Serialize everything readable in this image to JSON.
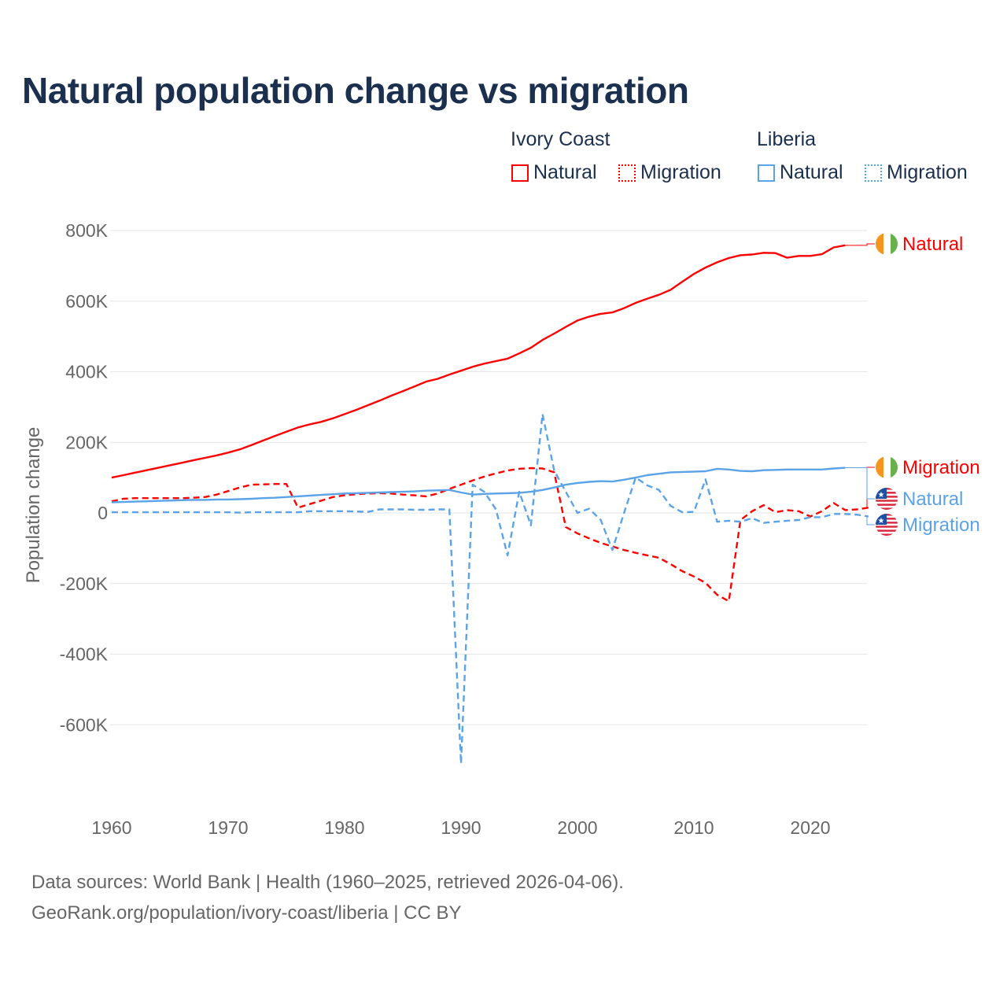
{
  "title": "Natural population change vs migration",
  "legend": {
    "groups": [
      {
        "name": "Ivory Coast",
        "color": "#ff0000",
        "items": [
          "Natural",
          "Migration"
        ]
      },
      {
        "name": "Liberia",
        "color": "#5ba3e8",
        "items": [
          "Natural",
          "Migration"
        ]
      }
    ]
  },
  "footer": {
    "line1": "Data sources: World Bank | Health (1960–2025, retrieved 2026-04-06).",
    "line2": "GeoRank.org/population/ivory-coast/liberia | CC BY"
  },
  "chart_data": {
    "type": "line",
    "title": "Natural population change vs migration",
    "xlabel": "",
    "ylabel": "Population change",
    "xlim": [
      1960,
      2025
    ],
    "ylim": [
      -800000,
      800000
    ],
    "x_ticks": [
      1960,
      1970,
      1980,
      1990,
      2000,
      2010,
      2020
    ],
    "x_tick_labels": [
      "1960",
      "1970",
      "1980",
      "1990",
      "2000",
      "2010",
      "2020"
    ],
    "y_ticks": [
      800000,
      600000,
      400000,
      200000,
      0,
      -200000,
      -400000,
      -600000
    ],
    "y_tick_labels": [
      "800K",
      "600K",
      "400K",
      "200K",
      "0",
      "-200K",
      "-400K",
      "-600K"
    ],
    "grid": true,
    "legend_position": "top-right",
    "series": [
      {
        "name": "Ivory Coast Natural",
        "end_label": "Natural",
        "country": "ivory-coast",
        "color": "#ff0000",
        "dash": false,
        "start_year": 1960,
        "values_k": [
          100,
          107,
          114,
          121,
          128,
          135,
          142,
          149,
          156,
          163,
          171,
          180,
          192,
          205,
          218,
          230,
          242,
          251,
          258,
          268,
          280,
          292,
          305,
          318,
          332,
          345,
          358,
          372,
          380,
          392,
          403,
          414,
          423,
          430,
          437,
          452,
          468,
          490,
          508,
          527,
          545,
          556,
          564,
          568,
          580,
          595,
          607,
          618,
          632,
          655,
          677,
          695,
          710,
          722,
          730,
          732,
          737,
          736,
          723,
          728,
          728,
          733,
          752,
          758
        ]
      },
      {
        "name": "Ivory Coast Migration",
        "end_label": "Migration",
        "country": "ivory-coast",
        "color": "#ff0000",
        "dash": true,
        "start_year": 1960,
        "values_k": [
          33,
          40,
          42,
          42,
          42,
          42,
          42,
          43,
          45,
          52,
          62,
          72,
          80,
          81,
          82,
          82,
          15,
          25,
          35,
          45,
          50,
          53,
          55,
          56,
          55,
          52,
          50,
          47,
          55,
          68,
          80,
          92,
          103,
          112,
          120,
          125,
          127,
          126,
          115,
          -40,
          -58,
          -72,
          -85,
          -95,
          -105,
          -113,
          -120,
          -127,
          -145,
          -165,
          -180,
          -198,
          -232,
          -250,
          -20,
          5,
          22,
          2,
          8,
          5,
          -10,
          5,
          28,
          8,
          10,
          15
        ]
      },
      {
        "name": "Liberia Natural",
        "end_label": "Natural",
        "country": "liberia",
        "color": "#5ba3e8",
        "dash": false,
        "start_year": 1960,
        "values_k": [
          30,
          31,
          32,
          33,
          34,
          35,
          36,
          37,
          37,
          38,
          38,
          39,
          40,
          42,
          43,
          45,
          47,
          49,
          51,
          53,
          55,
          56,
          57,
          58,
          59,
          60,
          61,
          63,
          64,
          65,
          58,
          52,
          54,
          55,
          56,
          57,
          60,
          65,
          72,
          80,
          85,
          88,
          90,
          89,
          94,
          100,
          107,
          111,
          115,
          116,
          117,
          118,
          125,
          123,
          119,
          118,
          121,
          122,
          123,
          123,
          123,
          123,
          126,
          128
        ]
      },
      {
        "name": "Liberia Migration",
        "end_label": "Migration",
        "country": "liberia",
        "color": "#5ba3e8",
        "dash": true,
        "start_year": 1960,
        "values_k": [
          2,
          2,
          2,
          2,
          2,
          2,
          2,
          2,
          2,
          2,
          2,
          1,
          2,
          2,
          2,
          2,
          2,
          5,
          5,
          5,
          5,
          4,
          3,
          10,
          10,
          10,
          9,
          9,
          10,
          10,
          -710,
          80,
          60,
          10,
          -120,
          60,
          -35,
          280,
          120,
          60,
          0,
          12,
          -20,
          -105,
          0,
          100,
          78,
          65,
          20,
          2,
          3,
          95,
          -25,
          -22,
          -25,
          -15,
          -28,
          -25,
          -22,
          -20,
          -12,
          -12,
          -3,
          -3,
          -5,
          -10
        ]
      }
    ]
  }
}
